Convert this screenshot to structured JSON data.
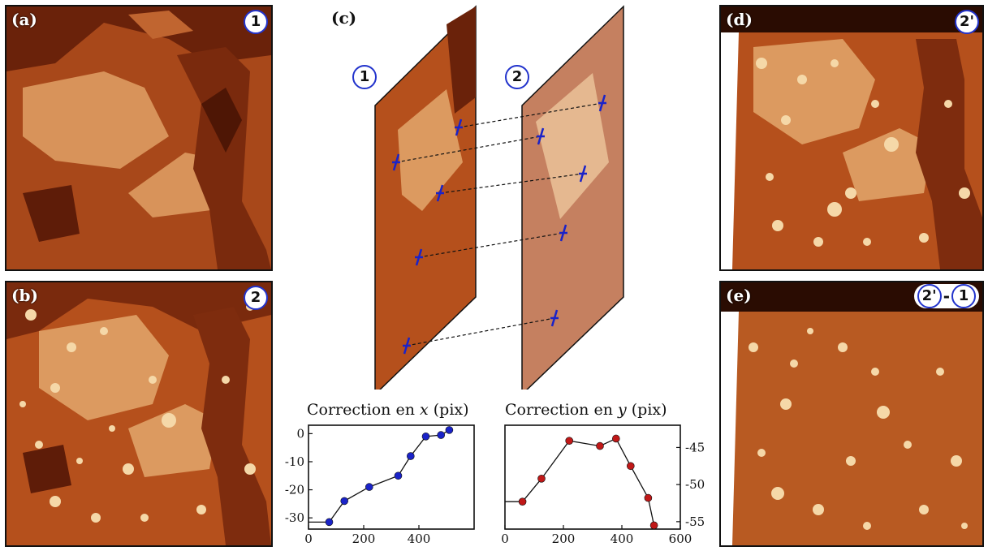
{
  "panels": {
    "a": {
      "label": "(a)",
      "badge": "1"
    },
    "b": {
      "label": "(b)",
      "badge": "2"
    },
    "c": {
      "label": "(c)",
      "badge_left": "1",
      "badge_right": "2"
    },
    "d": {
      "label": "(d)",
      "badge": "2'"
    },
    "e": {
      "label": "(e)",
      "badge_a": "2'",
      "badge_sep": "-",
      "badge_b": "1"
    }
  },
  "colors": {
    "afm_dark": "#5a1a05",
    "afm_mid": "#b5501c",
    "afm_light": "#e09a5a",
    "x_series": "#1a23c8",
    "y_series": "#c01818",
    "marker": "#1a23c8"
  },
  "chart_data": [
    {
      "type": "line",
      "title_prefix": "Correction en ",
      "title_var": "x",
      "title_suffix": " (pix)",
      "xlim": [
        0,
        600
      ],
      "ylim": [
        -34,
        3
      ],
      "xticks": [
        0,
        200,
        400
      ],
      "yticks": [
        0,
        -10,
        -20,
        -30
      ],
      "y_axis_side": "left",
      "series": [
        {
          "x": [
            0,
            75,
            130,
            220,
            325,
            370,
            425,
            480,
            510
          ],
          "y": [
            -31.5,
            -31.5,
            -24,
            -19,
            -15,
            -8,
            -1,
            -0.5,
            1.3
          ],
          "markers": [
            false,
            true,
            true,
            true,
            true,
            true,
            true,
            true,
            true
          ]
        }
      ]
    },
    {
      "type": "line",
      "title_prefix": "Correction en ",
      "title_var": "y",
      "title_suffix": " (pix)",
      "xlim": [
        0,
        600
      ],
      "ylim": [
        -56,
        -42
      ],
      "xticks": [
        0,
        200,
        400,
        600
      ],
      "yticks": [
        -45,
        -50,
        -55
      ],
      "y_axis_side": "right",
      "series": [
        {
          "x": [
            0,
            60,
            125,
            220,
            325,
            380,
            430,
            490,
            510
          ],
          "y": [
            -52.3,
            -52.3,
            -49.2,
            -44.1,
            -44.8,
            -43.8,
            -47.5,
            -51.8,
            -55.5
          ],
          "markers": [
            false,
            true,
            true,
            true,
            true,
            true,
            true,
            true,
            true
          ]
        }
      ]
    }
  ]
}
